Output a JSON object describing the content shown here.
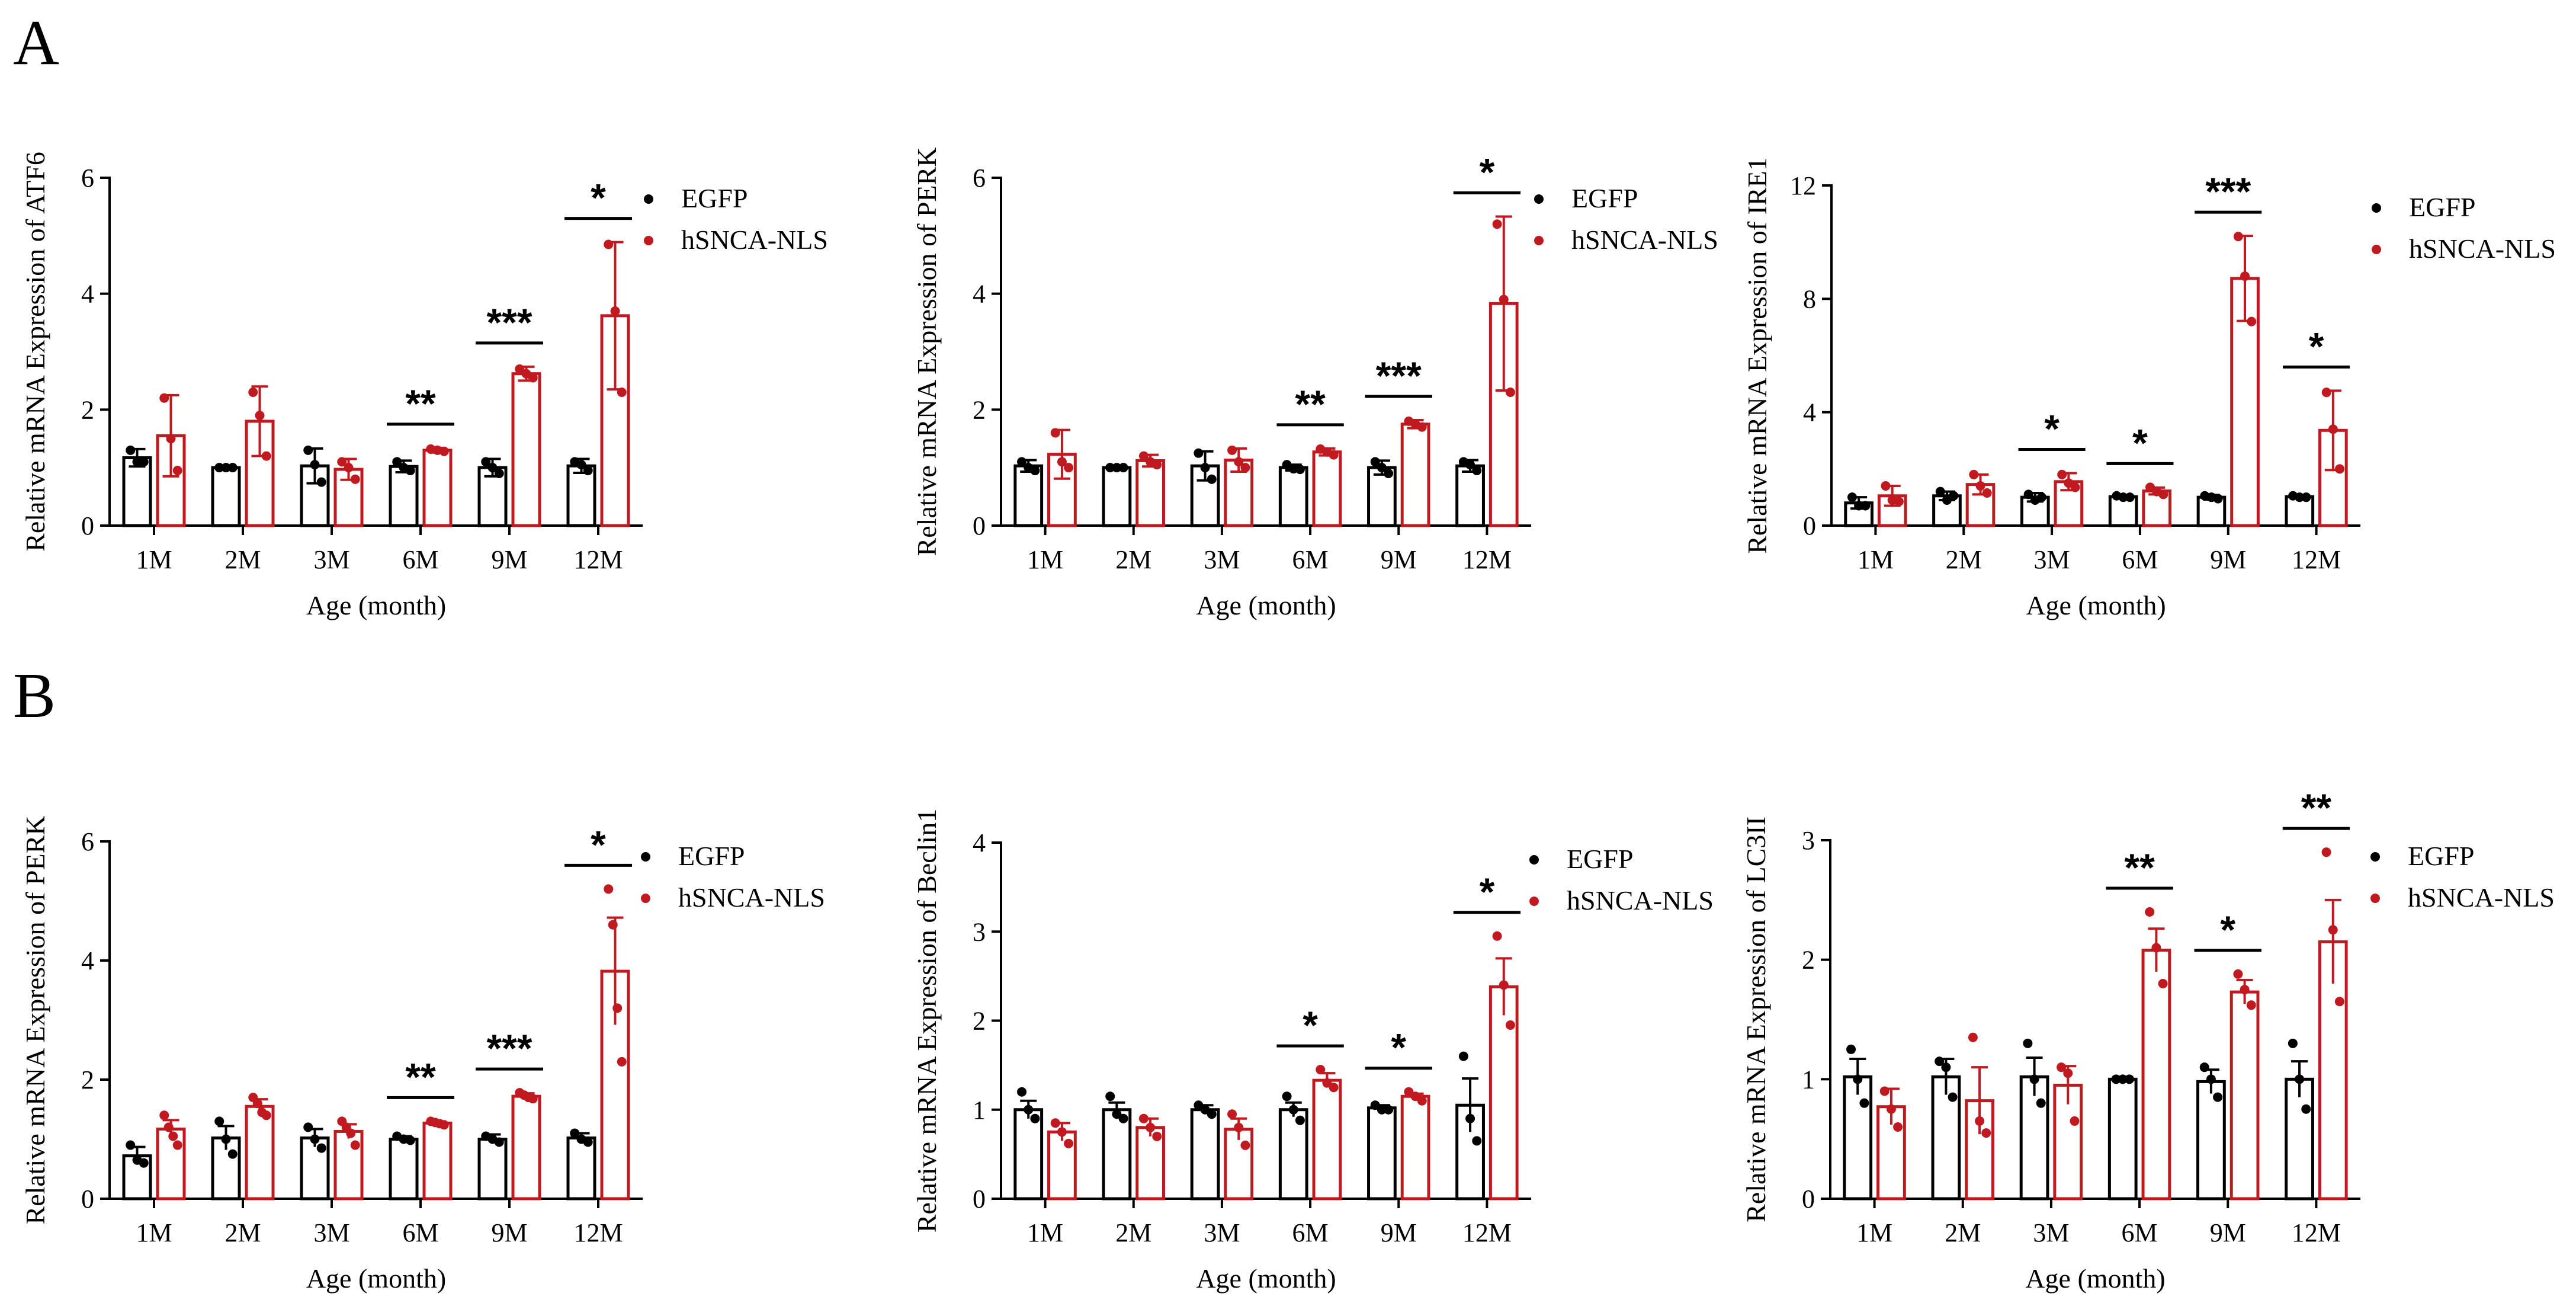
{
  "panel_labels": [
    "A",
    "B"
  ],
  "colors": {
    "control": "#000000",
    "treated": "#c0191f"
  },
  "chart_data": [
    {
      "type": "bar",
      "panel": "A",
      "ylabel": "Relative mRNA Expression of ATF6",
      "xlabel": "Age (month)",
      "categories": [
        "1M",
        "2M",
        "3M",
        "6M",
        "9M",
        "12M"
      ],
      "ylim": [
        0,
        6
      ],
      "yticks": [
        0,
        2,
        4,
        6
      ],
      "error_cap": true,
      "series": [
        {
          "name": "EGFP",
          "values": [
            1.17,
            1.0,
            1.03,
            1.02,
            1.0,
            1.03
          ],
          "err": [
            0.15,
            0.02,
            0.3,
            0.1,
            0.15,
            0.12
          ],
          "points": [
            [
              1.3,
              1.1,
              1.1
            ],
            [
              1.0,
              1.0,
              1.0
            ],
            [
              1.3,
              1.05,
              0.75
            ],
            [
              1.1,
              1.0,
              0.95
            ],
            [
              1.1,
              1.0,
              0.9
            ],
            [
              1.1,
              1.05,
              0.95
            ]
          ]
        },
        {
          "name": "hSNCA-NLS",
          "values": [
            1.55,
            1.8,
            0.97,
            1.3,
            2.62,
            3.62
          ],
          "err": [
            0.7,
            0.6,
            0.18,
            0.04,
            0.12,
            1.27
          ],
          "points": [
            [
              2.2,
              1.5,
              0.95
            ],
            [
              2.3,
              1.9,
              1.2
            ],
            [
              1.1,
              1.0,
              0.8
            ],
            [
              1.32,
              1.3,
              1.28
            ],
            [
              2.7,
              2.62,
              2.55
            ],
            [
              4.85,
              3.7,
              2.3
            ]
          ]
        }
      ],
      "significance": [
        {
          "category": "6M",
          "label": "**"
        },
        {
          "category": "9M",
          "label": "***"
        },
        {
          "category": "12M",
          "label": "*"
        }
      ]
    },
    {
      "type": "bar",
      "panel": "A",
      "ylabel": "Relative mRNA Expression of PERK",
      "xlabel": "Age (month)",
      "categories": [
        "1M",
        "2M",
        "3M",
        "6M",
        "9M",
        "12M"
      ],
      "ylim": [
        0,
        6
      ],
      "yticks": [
        0,
        2,
        4,
        6
      ],
      "error_cap": true,
      "series": [
        {
          "name": "EGFP",
          "values": [
            1.03,
            1.0,
            1.03,
            1.0,
            1.0,
            1.03
          ],
          "err": [
            0.1,
            0.02,
            0.25,
            0.05,
            0.12,
            0.1
          ],
          "points": [
            [
              1.1,
              1.0,
              0.95
            ],
            [
              1.0,
              1.0,
              1.0
            ],
            [
              1.25,
              1.0,
              0.8
            ],
            [
              1.05,
              0.98,
              0.97
            ],
            [
              1.1,
              1.0,
              0.9
            ],
            [
              1.1,
              1.05,
              0.95
            ]
          ]
        },
        {
          "name": "hSNCA-NLS",
          "values": [
            1.23,
            1.12,
            1.13,
            1.27,
            1.75,
            3.83
          ],
          "err": [
            0.42,
            0.1,
            0.2,
            0.06,
            0.07,
            1.5
          ],
          "points": [
            [
              1.6,
              1.1,
              1.0
            ],
            [
              1.2,
              1.1,
              1.05
            ],
            [
              1.3,
              1.1,
              1.0
            ],
            [
              1.32,
              1.27,
              1.22
            ],
            [
              1.8,
              1.75,
              1.7
            ],
            [
              5.2,
              3.9,
              2.3
            ]
          ]
        }
      ],
      "significance": [
        {
          "category": "6M",
          "label": "**"
        },
        {
          "category": "9M",
          "label": "***"
        },
        {
          "category": "12M",
          "label": "*"
        }
      ]
    },
    {
      "type": "bar",
      "panel": "A",
      "ylabel": "Relative mRNA Expression of IRE1",
      "xlabel": "Age (month)",
      "categories": [
        "1M",
        "2M",
        "3M",
        "6M",
        "9M",
        "12M"
      ],
      "ylim": [
        0,
        12
      ],
      "yticks": [
        0,
        4,
        8,
        12
      ],
      "error_cap": true,
      "series": [
        {
          "name": "EGFP",
          "values": [
            0.8,
            1.05,
            1.0,
            1.02,
            1.0,
            1.02
          ],
          "err": [
            0.2,
            0.15,
            0.15,
            0.05,
            0.08,
            0.06
          ],
          "points": [
            [
              1.0,
              0.7,
              0.7
            ],
            [
              1.2,
              0.9,
              1.05
            ],
            [
              1.1,
              0.9,
              1.0
            ],
            [
              1.05,
              1.0,
              1.0
            ],
            [
              1.05,
              1.0,
              0.95
            ],
            [
              1.05,
              1.0,
              1.0
            ]
          ]
        },
        {
          "name": "hSNCA-NLS",
          "values": [
            1.05,
            1.45,
            1.55,
            1.22,
            8.72,
            3.36
          ],
          "err": [
            0.35,
            0.35,
            0.3,
            0.12,
            1.5,
            1.4
          ],
          "points": [
            [
              1.4,
              0.9,
              0.85
            ],
            [
              1.8,
              1.4,
              1.15
            ],
            [
              1.8,
              1.5,
              1.35
            ],
            [
              1.35,
              1.2,
              1.1
            ],
            [
              10.2,
              8.8,
              7.2
            ],
            [
              4.7,
              3.4,
              2.0
            ]
          ]
        }
      ],
      "significance": [
        {
          "category": "3M",
          "label": "*"
        },
        {
          "category": "6M",
          "label": "*"
        },
        {
          "category": "9M",
          "label": "***"
        },
        {
          "category": "12M",
          "label": "*"
        }
      ]
    },
    {
      "type": "bar",
      "panel": "B",
      "ylabel": "Relative mRNA Expression of PERK",
      "xlabel": "Age (month)",
      "categories": [
        "1M",
        "2M",
        "3M",
        "6M",
        "9M",
        "12M"
      ],
      "ylim": [
        0,
        6
      ],
      "yticks": [
        0,
        2,
        4,
        6
      ],
      "error_cap": false,
      "series": [
        {
          "name": "EGFP",
          "values": [
            0.72,
            1.02,
            1.02,
            1.0,
            1.0,
            1.02
          ],
          "err": [
            0.15,
            0.2,
            0.15,
            0.05,
            0.08,
            0.08
          ],
          "points": [
            [
              0.9,
              0.65,
              0.6
            ],
            [
              1.3,
              1.0,
              0.75
            ],
            [
              1.2,
              1.0,
              0.85
            ],
            [
              1.05,
              1.0,
              0.98
            ],
            [
              1.05,
              1.0,
              0.95
            ],
            [
              1.1,
              1.0,
              0.95
            ]
          ]
        },
        {
          "name": "hSNCA-NLS",
          "values": [
            1.17,
            1.55,
            1.13,
            1.27,
            1.72,
            3.82
          ],
          "err": [
            0.15,
            0.12,
            0.12,
            0.03,
            0.05,
            0.9
          ],
          "points": [
            [
              1.4,
              1.2,
              1.05,
              0.9
            ],
            [
              1.7,
              1.6,
              1.45,
              1.4
            ],
            [
              1.3,
              1.2,
              1.1,
              0.9
            ],
            [
              1.3,
              1.28,
              1.26,
              1.24
            ],
            [
              1.78,
              1.74,
              1.7,
              1.68
            ],
            [
              5.2,
              4.6,
              3.2,
              2.3
            ]
          ]
        }
      ],
      "significance": [
        {
          "category": "6M",
          "label": "**"
        },
        {
          "category": "9M",
          "label": "***"
        },
        {
          "category": "12M",
          "label": "*"
        }
      ]
    },
    {
      "type": "bar",
      "panel": "B",
      "ylabel": "Relative mRNA Expression of Beclin1",
      "xlabel": "Age (month)",
      "categories": [
        "1M",
        "2M",
        "3M",
        "6M",
        "9M",
        "12M"
      ],
      "ylim": [
        0,
        4
      ],
      "yticks": [
        0,
        1,
        2,
        3,
        4
      ],
      "error_cap": false,
      "series": [
        {
          "name": "EGFP",
          "values": [
            1.0,
            1.0,
            1.0,
            1.0,
            1.02,
            1.05
          ],
          "err": [
            0.1,
            0.08,
            0.05,
            0.08,
            0.03,
            0.3
          ],
          "points": [
            [
              1.2,
              1.0,
              0.9
            ],
            [
              1.15,
              0.95,
              0.9
            ],
            [
              1.05,
              1.0,
              0.95
            ],
            [
              1.15,
              1.0,
              0.88
            ],
            [
              1.05,
              1.0,
              1.0
            ],
            [
              1.6,
              0.9,
              0.65
            ]
          ]
        },
        {
          "name": "hSNCA-NLS",
          "values": [
            0.75,
            0.8,
            0.78,
            1.33,
            1.15,
            2.38
          ],
          "err": [
            0.1,
            0.1,
            0.12,
            0.08,
            0.03,
            0.32
          ],
          "points": [
            [
              0.85,
              0.75,
              0.62
            ],
            [
              0.9,
              0.8,
              0.7
            ],
            [
              0.95,
              0.8,
              0.6
            ],
            [
              1.45,
              1.3,
              1.25
            ],
            [
              1.2,
              1.15,
              1.1
            ],
            [
              2.95,
              2.4,
              1.95
            ]
          ]
        }
      ],
      "significance": [
        {
          "category": "6M",
          "label": "*"
        },
        {
          "category": "9M",
          "label": "*"
        },
        {
          "category": "12M",
          "label": "*"
        }
      ]
    },
    {
      "type": "bar",
      "panel": "B",
      "ylabel": "Relative mRNA Expression of LC3II",
      "xlabel": "Age (month)",
      "categories": [
        "1M",
        "2M",
        "3M",
        "6M",
        "9M",
        "12M"
      ],
      "ylim": [
        0,
        3
      ],
      "yticks": [
        0,
        1,
        2,
        3
      ],
      "error_cap": false,
      "series": [
        {
          "name": "EGFP",
          "values": [
            1.02,
            1.02,
            1.02,
            1.0,
            0.98,
            1.0
          ],
          "err": [
            0.15,
            0.15,
            0.16,
            0.02,
            0.1,
            0.15
          ],
          "points": [
            [
              1.25,
              1.0,
              0.8
            ],
            [
              1.15,
              1.1,
              0.85
            ],
            [
              1.3,
              1.0,
              0.8
            ],
            [
              1.0,
              1.0,
              1.0
            ],
            [
              1.1,
              1.0,
              0.85
            ],
            [
              1.3,
              1.0,
              0.75
            ]
          ]
        },
        {
          "name": "hSNCA-NLS",
          "values": [
            0.77,
            0.82,
            0.95,
            2.08,
            1.73,
            2.15
          ],
          "err": [
            0.15,
            0.28,
            0.16,
            0.18,
            0.1,
            0.35
          ],
          "points": [
            [
              0.9,
              0.75,
              0.6
            ],
            [
              1.35,
              0.65,
              0.55
            ],
            [
              1.1,
              1.05,
              0.65
            ],
            [
              2.4,
              2.1,
              1.8
            ],
            [
              1.88,
              1.75,
              1.62
            ],
            [
              2.9,
              2.25,
              1.65
            ]
          ]
        }
      ],
      "significance": [
        {
          "category": "6M",
          "label": "**"
        },
        {
          "category": "9M",
          "label": "*"
        },
        {
          "category": "12M",
          "label": "**"
        }
      ]
    }
  ]
}
